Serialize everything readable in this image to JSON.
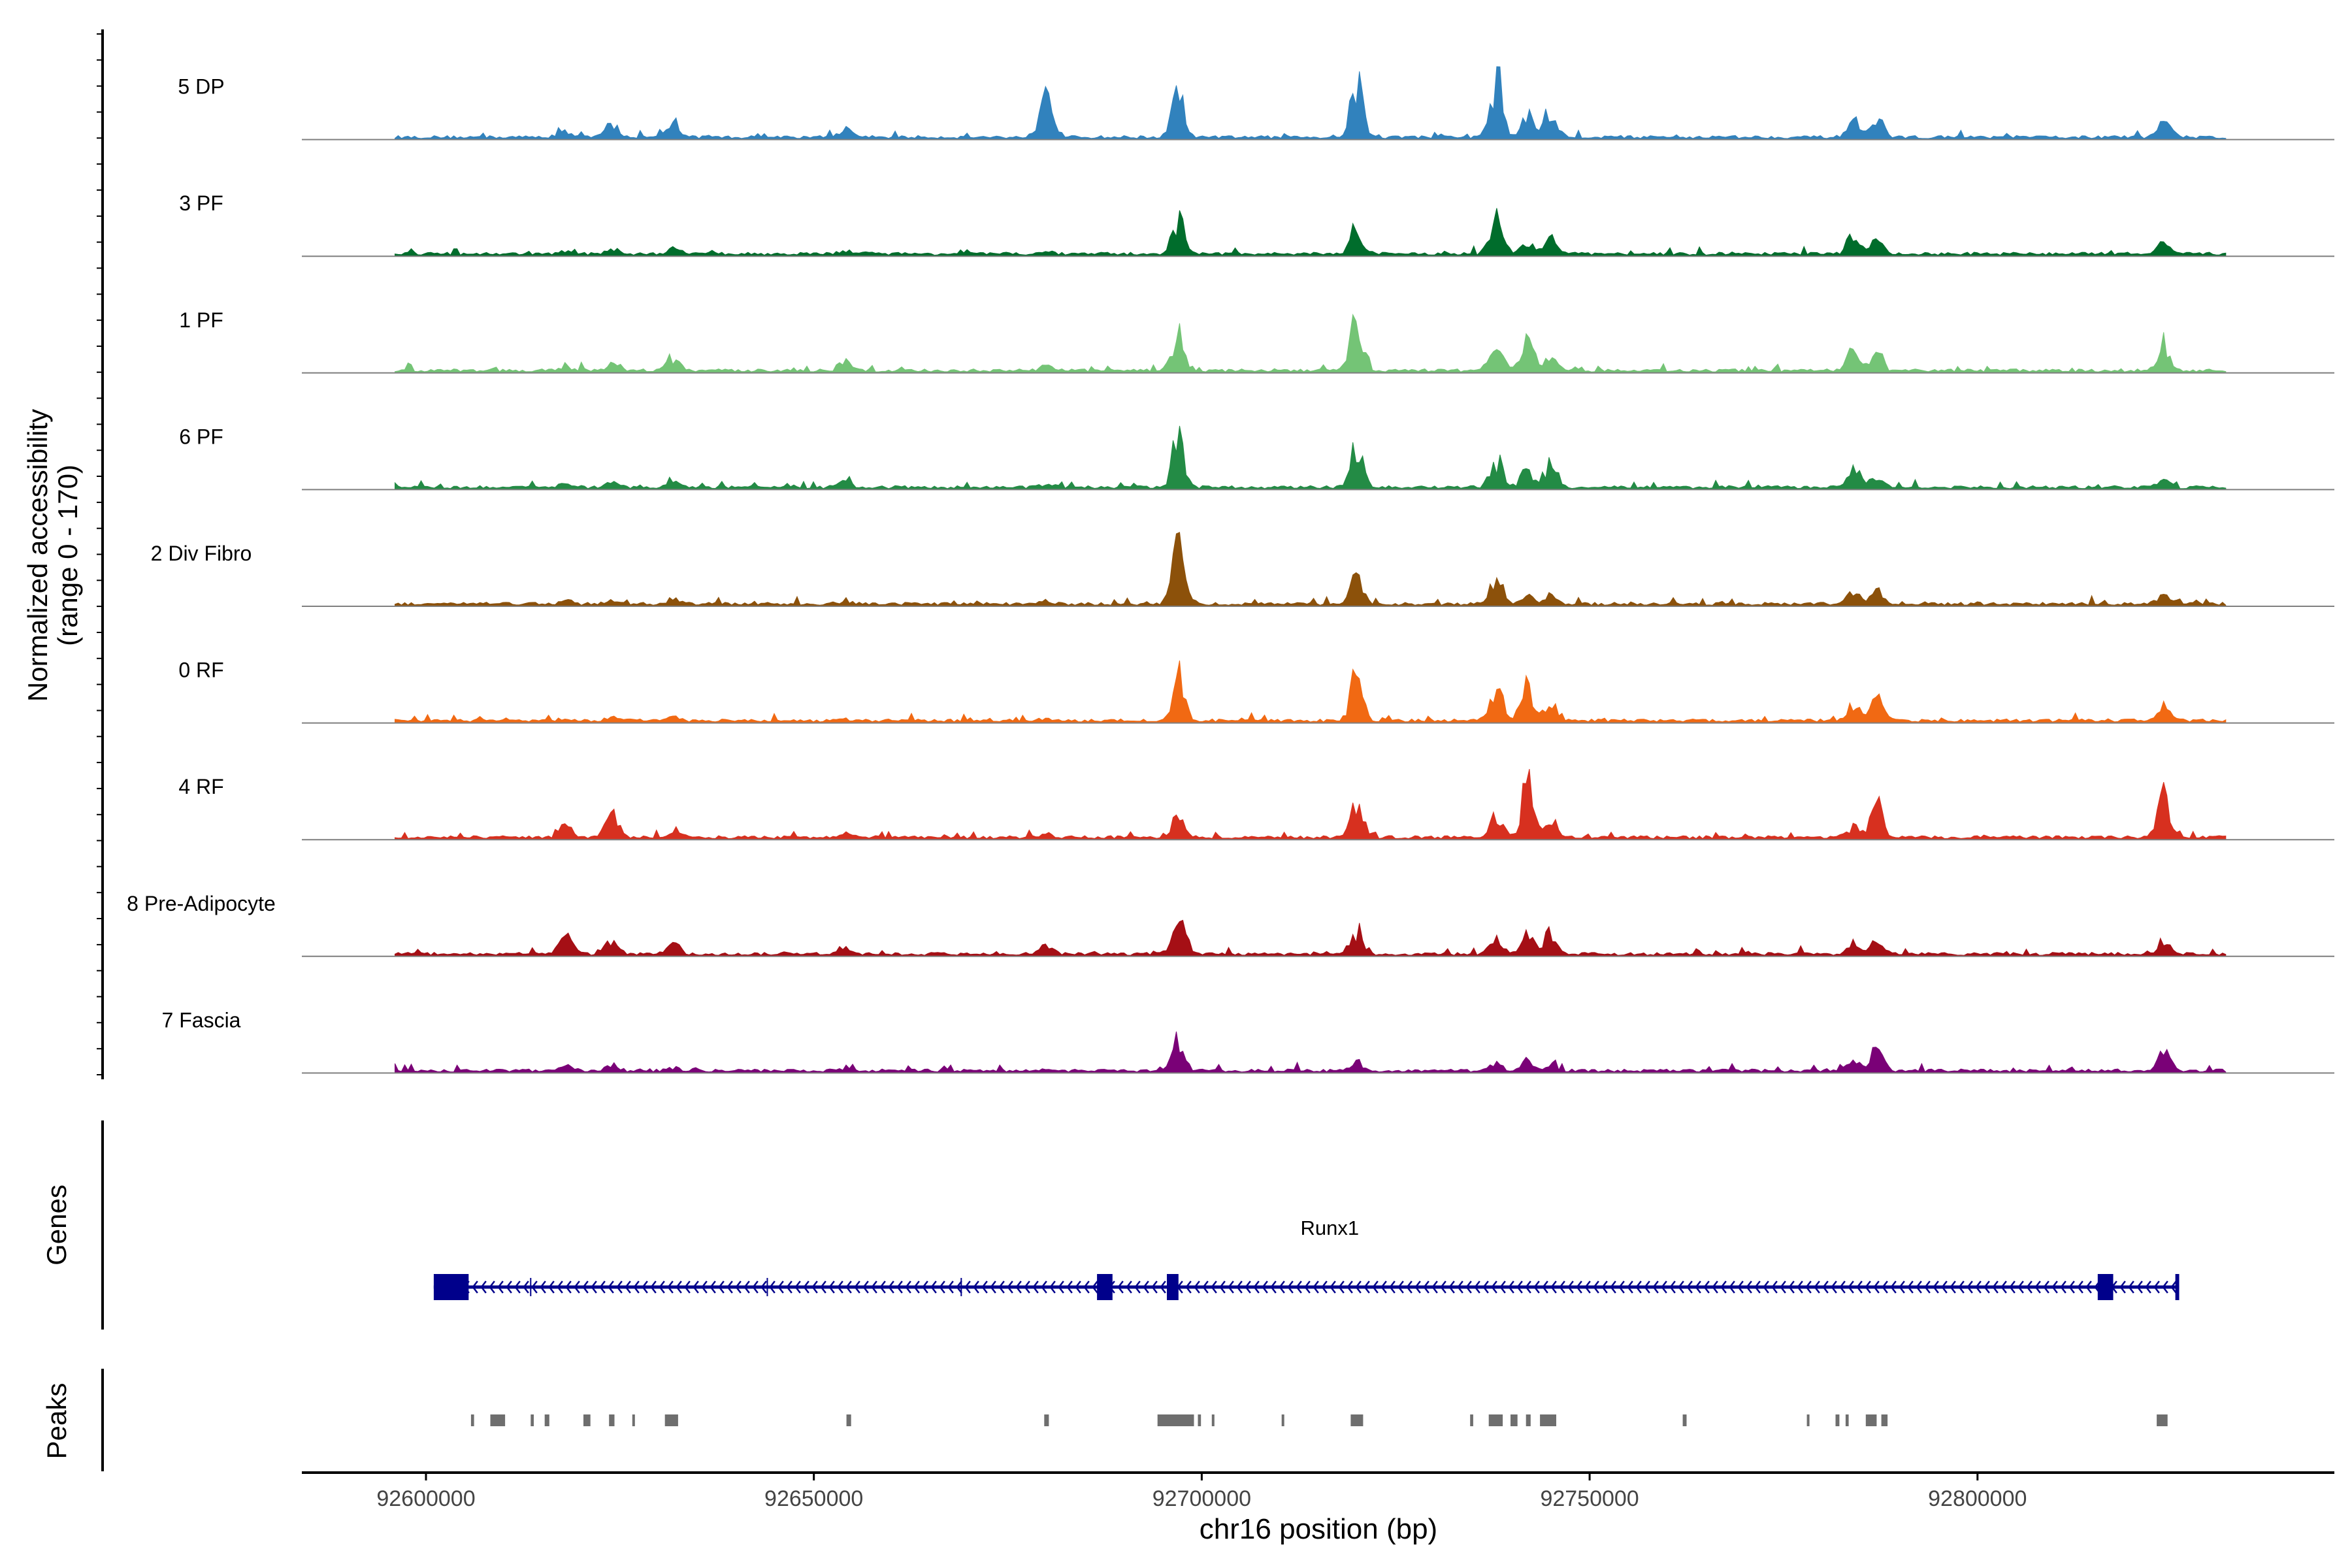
{
  "chart_data": {
    "type": "area",
    "ylabel_line1": "Normalized accessibility",
    "ylabel_line2": "(range 0 - 170)",
    "ylim": [
      0,
      170
    ],
    "xlabel": "chr16 position (bp)",
    "xlim": [
      92584000,
      92846000
    ],
    "xticks": [
      92600000,
      92650000,
      92700000,
      92750000,
      92800000
    ],
    "xtick_labels": [
      "92600000",
      "92650000",
      "92700000",
      "92750000",
      "92800000"
    ],
    "tracks": [
      {
        "name": "5 DP",
        "color": "#3182bd"
      },
      {
        "name": "3 PF",
        "color": "#006d2c"
      },
      {
        "name": "1 PF",
        "color": "#74c476"
      },
      {
        "name": "6 PF",
        "color": "#238b45"
      },
      {
        "name": "2 Div Fibro",
        "color": "#8c510a"
      },
      {
        "name": "0 RF",
        "color": "#f16913"
      },
      {
        "name": "4 RF",
        "color": "#d7301f"
      },
      {
        "name": "8 Pre-Adipocyte",
        "color": "#a50f15"
      },
      {
        "name": "7 Fascia",
        "color": "#7a0177"
      }
    ],
    "peak_positions": [
      92618000,
      92624000,
      92632000,
      92654000,
      92680000,
      92697000,
      92720000,
      92738000,
      92742000,
      92745000,
      92784000,
      92787000,
      92824000
    ],
    "heights": [
      [
        0.1,
        0.25,
        0.25,
        0.15,
        0.95,
        0.7,
        0.9,
        1.0,
        0.35,
        0.45,
        0.25,
        0.3,
        0.35
      ],
      [
        0.05,
        0.08,
        0.1,
        0.05,
        0.05,
        0.55,
        0.5,
        0.65,
        0.2,
        0.3,
        0.35,
        0.2,
        0.2
      ],
      [
        0.05,
        0.1,
        0.22,
        0.15,
        0.08,
        0.65,
        0.95,
        0.6,
        0.55,
        0.25,
        0.35,
        0.3,
        0.45
      ],
      [
        0.05,
        0.12,
        0.15,
        0.15,
        0.05,
        0.85,
        0.7,
        0.45,
        0.3,
        0.4,
        0.3,
        0.2,
        0.12
      ],
      [
        0.05,
        0.05,
        0.1,
        0.05,
        0.05,
        0.9,
        0.45,
        0.4,
        0.15,
        0.15,
        0.2,
        0.2,
        0.15
      ],
      [
        0.03,
        0.05,
        0.05,
        0.03,
        0.03,
        0.75,
        0.75,
        0.55,
        0.6,
        0.35,
        0.25,
        0.35,
        0.25
      ],
      [
        0.25,
        0.45,
        0.08,
        0.08,
        0.05,
        0.4,
        0.55,
        0.35,
        0.85,
        0.3,
        0.2,
        0.6,
        0.65
      ],
      [
        0.3,
        0.2,
        0.15,
        0.1,
        0.15,
        0.65,
        0.4,
        0.25,
        0.3,
        0.35,
        0.2,
        0.2,
        0.25
      ],
      [
        0.08,
        0.08,
        0.05,
        0.03,
        0.03,
        0.55,
        0.15,
        0.15,
        0.15,
        0.1,
        0.15,
        0.35,
        0.3
      ]
    ],
    "genes": {
      "ylabel": "Genes",
      "name": "Runx1",
      "strand": "-",
      "start": 92601000,
      "end": 92826000,
      "exons": [
        [
          92601000,
          92605500
        ],
        [
          92686500,
          92688500
        ],
        [
          92695500,
          92697000
        ],
        [
          92815500,
          92817500
        ],
        [
          92825500,
          92826000
        ]
      ]
    },
    "peaks": {
      "ylabel": "Peaks",
      "regions": [
        [
          92605800,
          92606200
        ],
        [
          92608300,
          92610200
        ],
        [
          92613500,
          92613900
        ],
        [
          92615300,
          92615900
        ],
        [
          92620300,
          92621200
        ],
        [
          92623600,
          92624300
        ],
        [
          92626600,
          92626900
        ],
        [
          92630800,
          92632500
        ],
        [
          92654200,
          92654800
        ],
        [
          92679700,
          92680300
        ],
        [
          92694300,
          92699000
        ],
        [
          92699500,
          92699900
        ],
        [
          92701300,
          92701600
        ],
        [
          92710300,
          92710600
        ],
        [
          92719200,
          92720800
        ],
        [
          92734600,
          92735000
        ],
        [
          92737000,
          92738800
        ],
        [
          92739800,
          92740700
        ],
        [
          92741800,
          92742400
        ],
        [
          92743600,
          92745700
        ],
        [
          92762000,
          92762500
        ],
        [
          92778000,
          92778300
        ],
        [
          92781700,
          92782200
        ],
        [
          92783000,
          92783400
        ],
        [
          92785600,
          92787000
        ],
        [
          92787600,
          92788400
        ],
        [
          92823100,
          92824500
        ]
      ]
    }
  }
}
